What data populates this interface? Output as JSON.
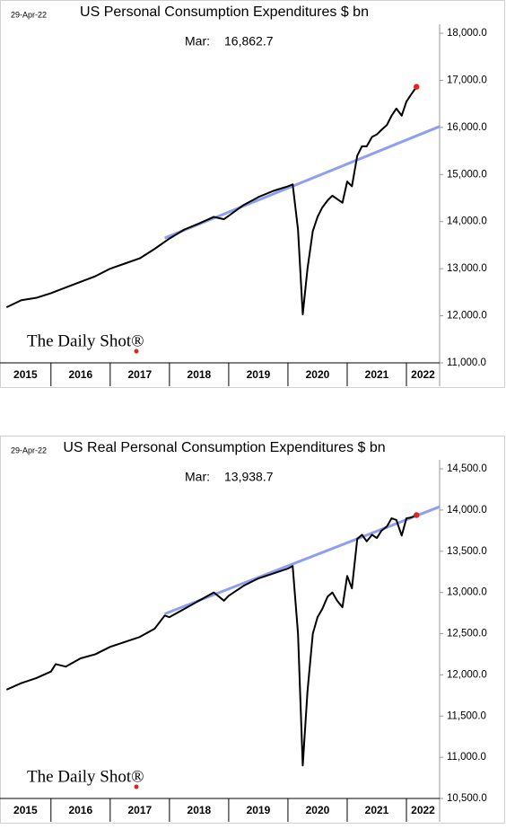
{
  "chart_data": [
    {
      "type": "line",
      "title": "US Personal Consumption Expenditures $ bn",
      "date": "29-Apr-22",
      "source": "The Daily Shot®",
      "annotation": {
        "label": "Mar:",
        "value": 16862.7,
        "value_label": "16,862.7",
        "color": "#e8211e"
      },
      "color": "#000000",
      "xlim": [
        2015.14,
        2022.56
      ],
      "year_labels": [
        2015,
        2016,
        2017,
        2018,
        2019,
        2020,
        2021,
        2022
      ],
      "ylim": [
        11000,
        18000
      ],
      "yticks": [
        {
          "value": 11000,
          "label": "11,000.0"
        },
        {
          "value": 12000,
          "label": "12,000.0"
        },
        {
          "value": 13000,
          "label": "13,000.0"
        },
        {
          "value": 14000,
          "label": "14,000.0"
        },
        {
          "value": 15000,
          "label": "15,000.0"
        },
        {
          "value": 16000,
          "label": "16,000.0"
        },
        {
          "value": 17000,
          "label": "17,000.0"
        },
        {
          "value": 18000,
          "label": "18,000.0"
        }
      ],
      "x": [
        2015.25,
        2015.5,
        2015.75,
        2016.0,
        2016.25,
        2016.5,
        2016.75,
        2017.0,
        2017.25,
        2017.5,
        2017.75,
        2018.0,
        2018.25,
        2018.5,
        2018.75,
        2018.92,
        2019.25,
        2019.5,
        2019.75,
        2020.0,
        2020.08,
        2020.17,
        2020.25,
        2020.33,
        2020.42,
        2020.5,
        2020.58,
        2020.67,
        2020.75,
        2020.83,
        2020.92,
        2021.0,
        2021.08,
        2021.17,
        2021.25,
        2021.33,
        2021.42,
        2021.5,
        2021.58,
        2021.67,
        2021.75,
        2021.83,
        2021.92,
        2022.0,
        2022.08,
        2022.17
      ],
      "values": [
        12180,
        12330,
        12380,
        12480,
        12600,
        12720,
        12840,
        13000,
        13110,
        13220,
        13420,
        13640,
        13830,
        13960,
        14100,
        14050,
        14350,
        14520,
        14650,
        14750,
        14790,
        13830,
        12030,
        13000,
        13800,
        14100,
        14300,
        14450,
        14550,
        14480,
        14400,
        14850,
        14750,
        15400,
        15600,
        15600,
        15800,
        15850,
        15950,
        16050,
        16250,
        16400,
        16250,
        16550,
        16700,
        16862.7
      ],
      "trend_line": {
        "color": "#8f9fef",
        "x": [
          2017.92,
          2022.56
        ],
        "values": [
          13650,
          16020
        ]
      }
    },
    {
      "type": "line",
      "title": "US Real Personal Consumption Expenditures $ bn",
      "date": "29-Apr-22",
      "source": "The Daily Shot®",
      "annotation": {
        "label": "Mar:",
        "value": 13938.7,
        "value_label": "13,938.7",
        "color": "#e8211e"
      },
      "color": "#000000",
      "xlim": [
        2015.14,
        2022.56
      ],
      "year_labels": [
        2015,
        2016,
        2017,
        2018,
        2019,
        2020,
        2021,
        2022
      ],
      "ylim": [
        10500,
        14500
      ],
      "yticks": [
        {
          "value": 10500,
          "label": "10,500.0"
        },
        {
          "value": 11000,
          "label": "11,000.0"
        },
        {
          "value": 11500,
          "label": "11,500.0"
        },
        {
          "value": 12000,
          "label": "12,000.0"
        },
        {
          "value": 12500,
          "label": "12,500.0"
        },
        {
          "value": 13000,
          "label": "13,000.0"
        },
        {
          "value": 13500,
          "label": "13,500.0"
        },
        {
          "value": 14000,
          "label": "14,000.0"
        },
        {
          "value": 14500,
          "label": "14,500.0"
        }
      ],
      "x": [
        2015.25,
        2015.5,
        2015.75,
        2016.0,
        2016.08,
        2016.25,
        2016.5,
        2016.75,
        2017.0,
        2017.25,
        2017.5,
        2017.75,
        2017.92,
        2018.0,
        2018.25,
        2018.5,
        2018.75,
        2018.92,
        2019.0,
        2019.25,
        2019.5,
        2019.75,
        2020.0,
        2020.08,
        2020.17,
        2020.25,
        2020.33,
        2020.42,
        2020.5,
        2020.58,
        2020.67,
        2020.75,
        2020.83,
        2020.92,
        2021.0,
        2021.08,
        2021.17,
        2021.25,
        2021.33,
        2021.42,
        2021.5,
        2021.58,
        2021.67,
        2021.75,
        2021.83,
        2021.92,
        2022.0,
        2022.08,
        2022.17
      ],
      "values": [
        11820,
        11900,
        11960,
        12040,
        12130,
        12100,
        12200,
        12250,
        12340,
        12400,
        12460,
        12560,
        12720,
        12700,
        12800,
        12900,
        13000,
        12900,
        12960,
        13080,
        13170,
        13230,
        13290,
        13320,
        12500,
        10900,
        11800,
        12500,
        12700,
        12800,
        12950,
        13000,
        12900,
        12820,
        13200,
        13050,
        13650,
        13700,
        13620,
        13700,
        13660,
        13750,
        13800,
        13900,
        13880,
        13690,
        13900,
        13910,
        13938.7
      ],
      "trend_line": {
        "color": "#8f9fef",
        "x": [
          2017.92,
          2022.56
        ],
        "values": [
          12740,
          14040
        ]
      }
    }
  ]
}
